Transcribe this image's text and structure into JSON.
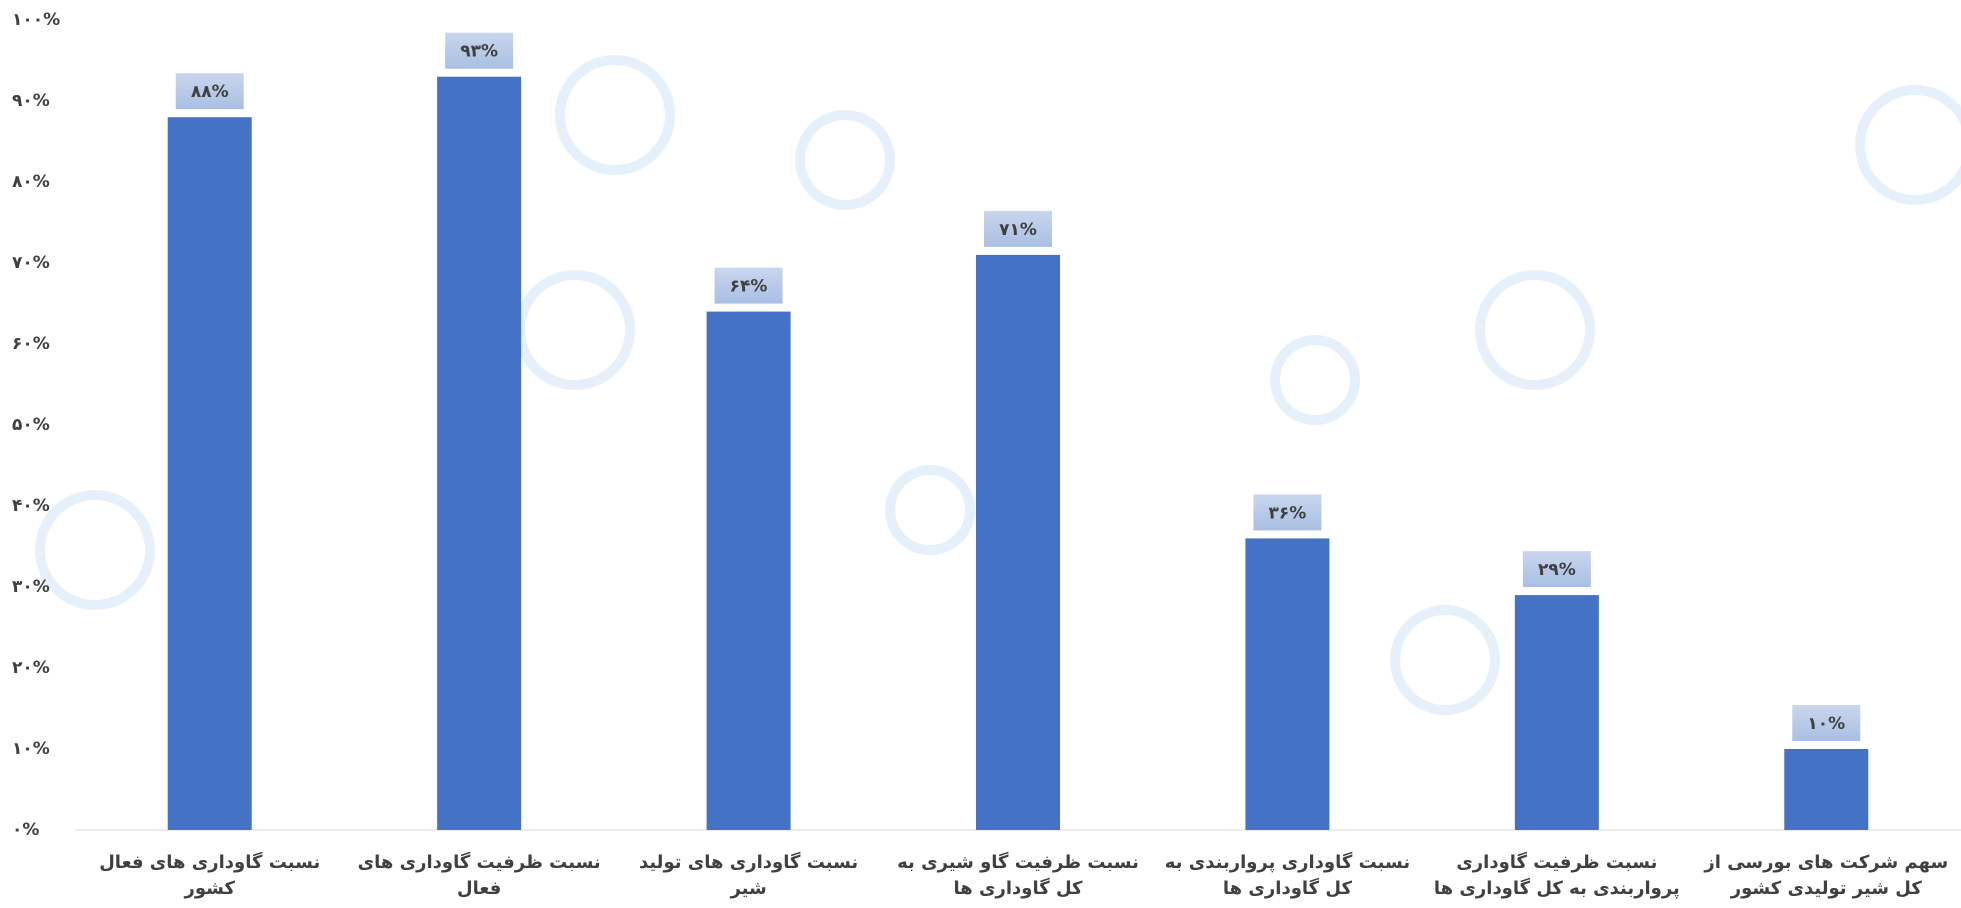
{
  "chart_data": {
    "type": "bar",
    "categories": [
      "نسبت گاوداری های فعال کشور",
      "نسبت ظرفیت گاوداری های فعال",
      "نسبت گاوداری های تولید شیر",
      "نسبت ظرفیت گاو شیری به کل گاوداری ها",
      "نسبت گاوداری پرواربندی به کل گاوداری ها",
      "نسبت ظرفیت گاوداری پرواربندی به کل گاوداری ها",
      "سهم شرکت های بورسی از کل شیر تولیدی کشور"
    ],
    "values": [
      88,
      93,
      64,
      71,
      36,
      29,
      10
    ],
    "value_labels": [
      "۸۸%",
      "۹۳%",
      "۶۴%",
      "۷۱%",
      "۳۶%",
      "۲۹%",
      "۱۰%"
    ],
    "color": "#4472c4",
    "ylim": [
      0,
      100
    ],
    "yticks": [
      {
        "value": 0,
        "label": "۰%"
      },
      {
        "value": 10,
        "label": "۱۰%"
      },
      {
        "value": 20,
        "label": "۲۰%"
      },
      {
        "value": 30,
        "label": "۳۰%"
      },
      {
        "value": 40,
        "label": "۴۰%"
      },
      {
        "value": 50,
        "label": "۵۰%"
      },
      {
        "value": 60,
        "label": "۶۰%"
      },
      {
        "value": 70,
        "label": "۷۰%"
      },
      {
        "value": 80,
        "label": "۸۰%"
      },
      {
        "value": 90,
        "label": "۹۰%"
      },
      {
        "value": 100,
        "label": "۱۰۰%"
      }
    ],
    "grid": false
  }
}
